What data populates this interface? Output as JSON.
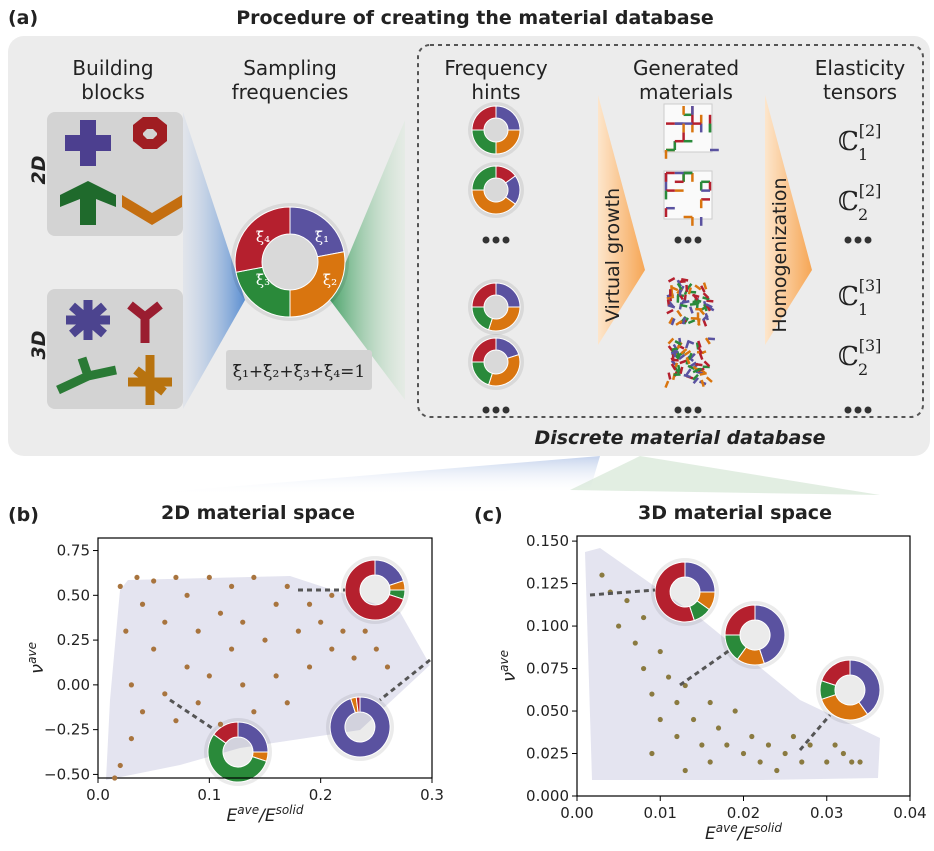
{
  "diagram": {
    "panel_label": "(a)",
    "title": "Procedure of creating the material database",
    "headers": [
      [
        "Building",
        "blocks"
      ],
      [
        "Sampling",
        "frequencies"
      ],
      [
        "Frequency",
        "hints"
      ],
      [
        "Generated",
        "materials"
      ],
      [
        "Elasticity",
        "tensors"
      ]
    ],
    "dims": [
      "2D",
      "3D"
    ],
    "ring_labels": [
      "ξ̄₁",
      "ξ̄₂",
      "ξ̄₃",
      "ξ̄₄"
    ],
    "formula": "ξ̄₁+ξ̄₂+ξ̄₃+ξ̄₄=1",
    "steps": [
      "Virtual growth",
      "Homogenization"
    ],
    "tensors": [
      {
        "symbol": "ℂ",
        "sup": "[2]",
        "sub": "1"
      },
      {
        "symbol": "ℂ",
        "sup": "[2]",
        "sub": "2"
      },
      {
        "symbol": "ℂ",
        "sup": "[3]",
        "sub": "1"
      },
      {
        "symbol": "ℂ",
        "sup": "[3]",
        "sub": "2"
      }
    ],
    "database_label": "Discrete material database"
  },
  "chart_data": [
    {
      "type": "scatter",
      "panel": "(b)",
      "title": "2D material space",
      "color": "#a8743e",
      "xlabel": [
        "E",
        "ave",
        "/E",
        "solid"
      ],
      "ylabel": [
        "ν",
        "ave"
      ],
      "xlim": [
        0,
        0.3
      ],
      "ylim": [
        -0.52,
        0.82
      ],
      "xticks": [
        {
          "value": 0,
          "label": "0.0"
        },
        0.1,
        0.2,
        0.3
      ],
      "yticks": [
        {
          "value": -0.5,
          "label": "−0.50"
        },
        {
          "value": -0.25,
          "label": "−0.25"
        },
        {
          "value": 0,
          "label": "0.00"
        },
        0.25,
        {
          "value": 0.5,
          "label": "0.50"
        },
        0.75
      ],
      "x": [
        0.015,
        0.02,
        0.02,
        0.025,
        0.03,
        0.03,
        0.035,
        0.04,
        0.04,
        0.05,
        0.05,
        0.06,
        0.06,
        0.07,
        0.07,
        0.08,
        0.08,
        0.09,
        0.09,
        0.1,
        0.1,
        0.11,
        0.11,
        0.12,
        0.12,
        0.13,
        0.13,
        0.14,
        0.14,
        0.15,
        0.16,
        0.16,
        0.17,
        0.17,
        0.18,
        0.19,
        0.19,
        0.2,
        0.21,
        0.21,
        0.22,
        0.23,
        0.24,
        0.25,
        0.26
      ],
      "values": [
        -0.52,
        -0.45,
        0.55,
        0.3,
        0.0,
        -0.3,
        0.6,
        0.45,
        -0.15,
        0.2,
        0.58,
        -0.05,
        0.35,
        0.6,
        -0.2,
        0.1,
        0.5,
        0.3,
        -0.1,
        0.6,
        0.05,
        0.4,
        -0.22,
        0.2,
        0.55,
        0.0,
        0.35,
        0.6,
        -0.15,
        0.25,
        0.45,
        0.05,
        0.55,
        -0.1,
        0.3,
        0.45,
        0.1,
        0.35,
        0.2,
        0.5,
        0.3,
        0.15,
        0.3,
        0.2,
        0.1
      ]
    },
    {
      "type": "scatter",
      "panel": "(c)",
      "title": "3D material space",
      "color": "#8a7a40",
      "xlabel": [
        "E",
        "ave",
        "/E",
        "solid"
      ],
      "ylabel": [
        "ν",
        "ave"
      ],
      "xlim": [
        0,
        0.04
      ],
      "ylim": [
        0,
        0.153
      ],
      "xticks": [
        {
          "value": 0,
          "label": "0.00"
        },
        0.01,
        0.02,
        0.03,
        0.04
      ],
      "yticks": [
        {
          "value": 0,
          "label": "0.000"
        },
        0.025,
        {
          "value": 0.05,
          "label": "0.050"
        },
        0.075,
        {
          "value": 0.1,
          "label": "0.100"
        },
        0.125,
        {
          "value": 0.15,
          "label": "0.150"
        }
      ],
      "x": [
        0.003,
        0.004,
        0.005,
        0.006,
        0.007,
        0.008,
        0.008,
        0.009,
        0.01,
        0.01,
        0.011,
        0.012,
        0.012,
        0.013,
        0.014,
        0.015,
        0.016,
        0.016,
        0.017,
        0.018,
        0.019,
        0.02,
        0.021,
        0.022,
        0.023,
        0.024,
        0.025,
        0.026,
        0.027,
        0.028,
        0.03,
        0.031,
        0.032,
        0.033,
        0.034,
        0.009,
        0.013
      ],
      "values": [
        0.13,
        0.12,
        0.1,
        0.115,
        0.09,
        0.075,
        0.105,
        0.06,
        0.085,
        0.045,
        0.07,
        0.055,
        0.035,
        0.065,
        0.045,
        0.03,
        0.055,
        0.02,
        0.04,
        0.03,
        0.05,
        0.025,
        0.035,
        0.02,
        0.03,
        0.015,
        0.025,
        0.035,
        0.02,
        0.03,
        0.02,
        0.03,
        0.025,
        0.02,
        0.02,
        0.025,
        0.015
      ]
    }
  ]
}
